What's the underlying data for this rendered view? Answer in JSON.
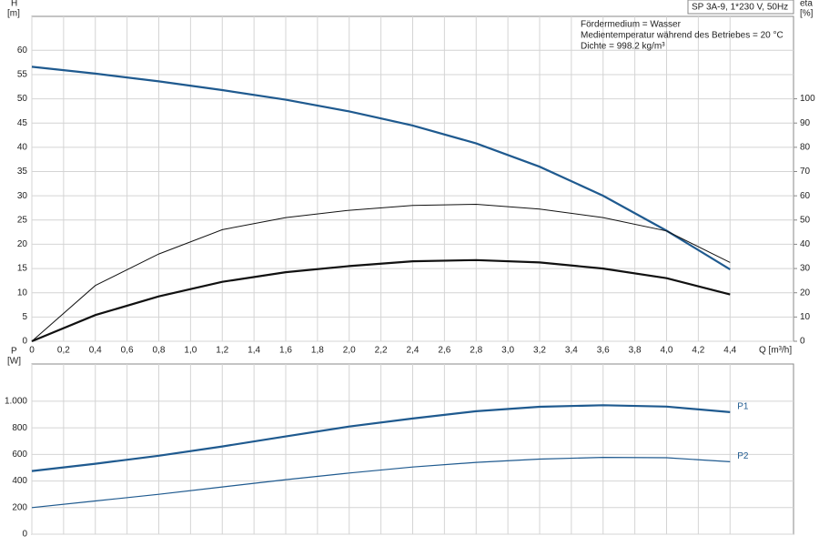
{
  "chart_data": [
    {
      "type": "line",
      "info_box": "SP 3A-9, 1*230 V, 50Hz",
      "annotations": [
        "Fördermedium = Wasser",
        "Medientemperatur während des Betriebes = 20 °C",
        "Dichte = 998.2 kg/m³"
      ],
      "y_label": "H",
      "y_unit": "[m]",
      "y2_label": "eta",
      "y2_unit": "[%]",
      "x_label": "Q [m³/h]",
      "x": [
        0,
        0.4,
        0.8,
        1.2,
        1.6,
        2.0,
        2.4,
        2.8,
        3.2,
        3.6,
        4.0,
        4.4
      ],
      "series": [
        {
          "color": "#1f5a8f",
          "line_width": 2.2,
          "values": [
            56.6,
            55.2,
            53.6,
            51.8,
            49.8,
            47.4,
            44.5,
            40.8,
            36.0,
            30.0,
            22.8,
            14.8
          ]
        },
        {
          "color": "#111111",
          "line_width": 1,
          "axis": "y2",
          "values": [
            0,
            23,
            36,
            46,
            51,
            54,
            56,
            56.5,
            54.5,
            51,
            45.5,
            32.5
          ]
        },
        {
          "color": "#111111",
          "line_width": 2.2,
          "axis": "y2",
          "values": [
            0,
            10.8,
            18.5,
            24.5,
            28.5,
            31,
            33,
            33.5,
            32.5,
            30,
            26,
            19.3
          ]
        }
      ],
      "xlim": [
        0,
        4.8
      ],
      "xticks": [
        0,
        {
          "value": 0.2,
          "label": "0,2"
        },
        {
          "value": 0.4,
          "label": "0,4"
        },
        {
          "value": 0.6,
          "label": "0,6"
        },
        {
          "value": 0.8,
          "label": "0,8"
        },
        {
          "value": 1.0,
          "label": "1,0"
        },
        {
          "value": 1.2,
          "label": "1,2"
        },
        {
          "value": 1.4,
          "label": "1,4"
        },
        {
          "value": 1.6,
          "label": "1,6"
        },
        {
          "value": 1.8,
          "label": "1,8"
        },
        {
          "value": 2.0,
          "label": "2,0"
        },
        {
          "value": 2.2,
          "label": "2,2"
        },
        {
          "value": 2.4,
          "label": "2,4"
        },
        {
          "value": 2.6,
          "label": "2,6"
        },
        {
          "value": 2.8,
          "label": "2,8"
        },
        {
          "value": 3.0,
          "label": "3,0"
        },
        {
          "value": 3.2,
          "label": "3,2"
        },
        {
          "value": 3.4,
          "label": "3,4"
        },
        {
          "value": 3.6,
          "label": "3,6"
        },
        {
          "value": 3.8,
          "label": "3,8"
        },
        {
          "value": 4.0,
          "label": "4,0"
        },
        {
          "value": 4.2,
          "label": "4,2"
        },
        {
          "value": 4.4,
          "label": "4,4"
        }
      ],
      "ylim": [
        0,
        67
      ],
      "yticks": [
        0,
        5,
        10,
        15,
        20,
        25,
        30,
        35,
        40,
        45,
        50,
        55,
        60
      ],
      "y2lim": [
        0,
        134
      ],
      "y2ticks": [
        0,
        10,
        20,
        30,
        40,
        50,
        60,
        70,
        80,
        90,
        100
      ],
      "grid": true
    },
    {
      "type": "line",
      "y_label": "P",
      "y_unit": "[W]",
      "x": [
        0,
        0.4,
        0.8,
        1.2,
        1.6,
        2.0,
        2.4,
        2.8,
        3.2,
        3.6,
        4.0,
        4.4
      ],
      "series": [
        {
          "name": "P1",
          "color": "#1f5a8f",
          "line_width": 2.2,
          "values": [
            475,
            530,
            590,
            660,
            735,
            810,
            870,
            925,
            958,
            970,
            960,
            918
          ]
        },
        {
          "name": "P2",
          "color": "#1f5a8f",
          "line_width": 1.2,
          "values": [
            200,
            250,
            300,
            355,
            410,
            460,
            505,
            540,
            565,
            578,
            575,
            545
          ]
        }
      ],
      "xlim": [
        0,
        4.8
      ],
      "ylim": [
        0,
        1280
      ],
      "yticks": [
        0,
        200,
        400,
        600,
        800,
        {
          "value": 1000,
          "label": "1.000"
        }
      ],
      "grid": true
    }
  ]
}
